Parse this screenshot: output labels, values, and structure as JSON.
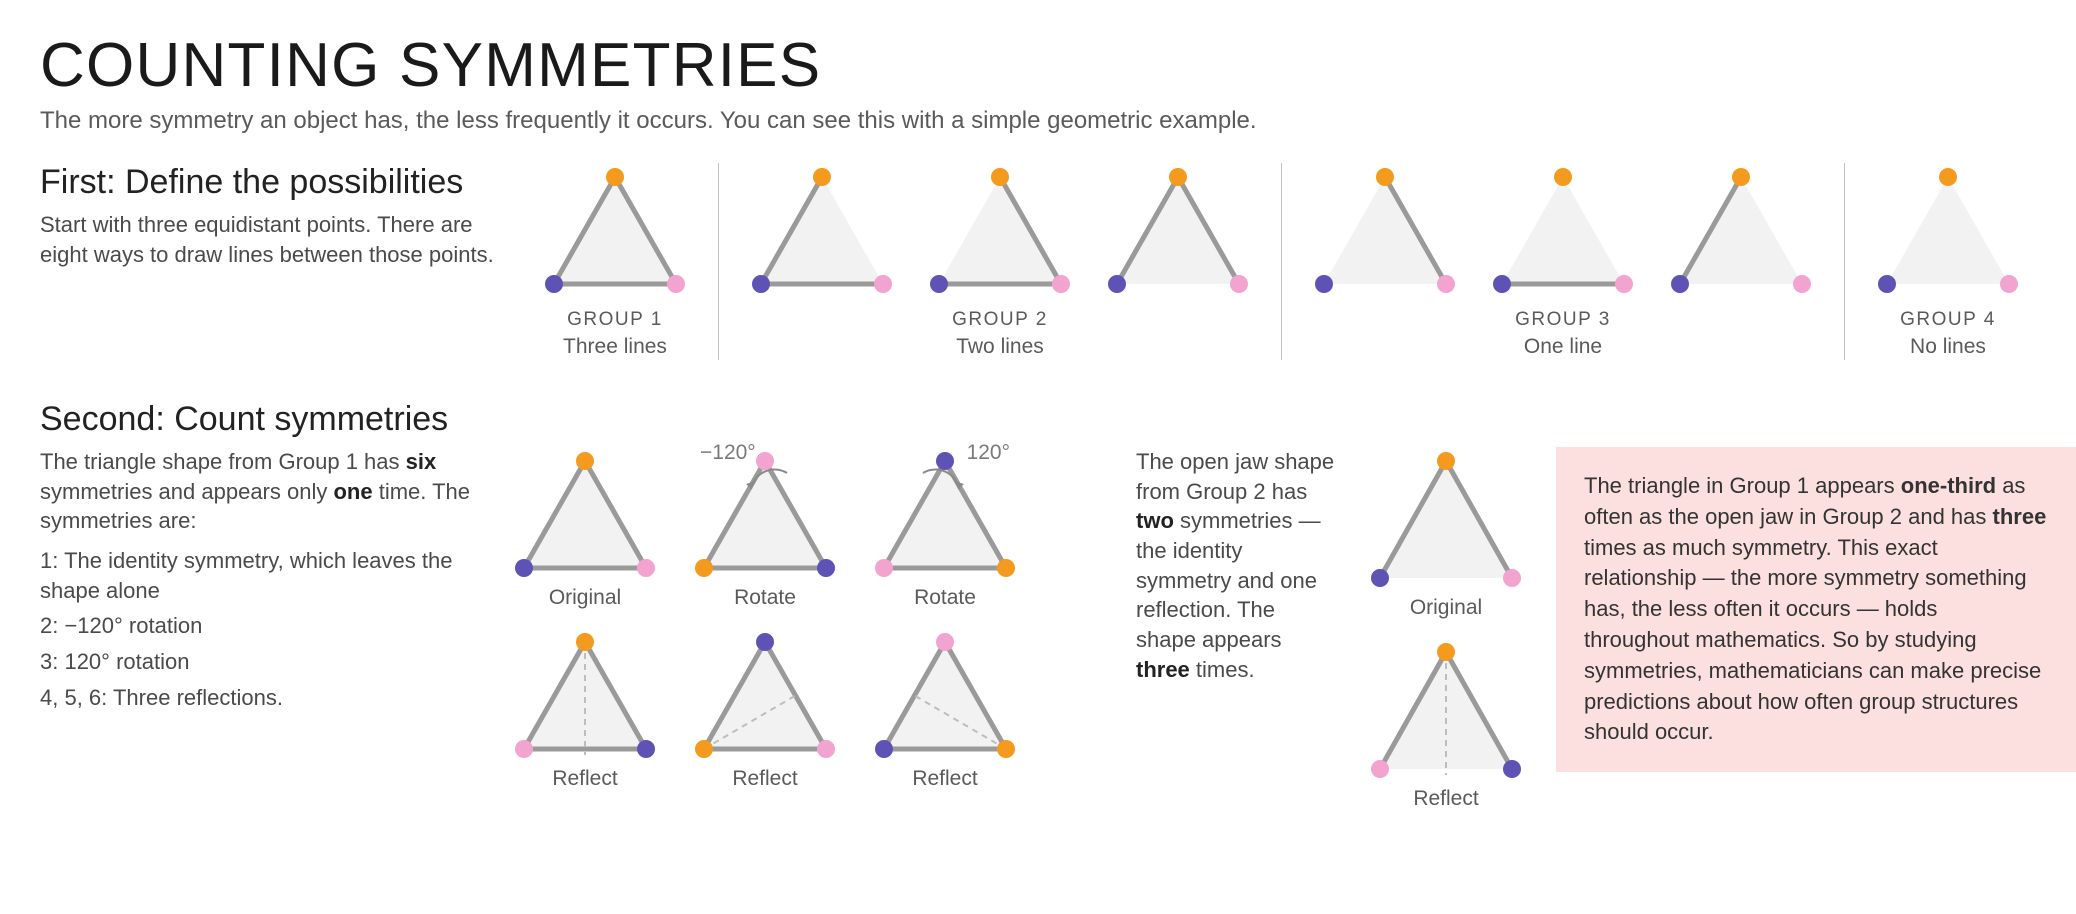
{
  "title": "COUNTING SYMMETRIES",
  "subtitle": "The more symmetry an object has, the less frequently it occurs. You can see this with a simple geometric example.",
  "colors": {
    "top": "#f39a1f",
    "left": "#5e52b5",
    "right": "#f2a3cf",
    "edge": "#9a9a9a",
    "fill": "#f2f2f2",
    "divider": "#bfbfbf",
    "dash": "#bdbdbd",
    "text_muted": "#5a5a5a",
    "callout_bg": "#fce0e0"
  },
  "triangle_geom": {
    "width": 150,
    "height": 140,
    "dot_r": 9,
    "edge_w": 5
  },
  "section1": {
    "heading": "First: Define the possibilities",
    "text": "Start with three equidistant points. There are eight ways to draw lines between those points.",
    "groups": [
      {
        "name": "GROUP 1",
        "detail": "Three lines",
        "triangles": [
          {
            "colors": [
              "top",
              "left",
              "right"
            ],
            "edges": [
              "tl",
              "tr",
              "lr"
            ]
          }
        ]
      },
      {
        "name": "GROUP 2",
        "detail": "Two lines",
        "triangles": [
          {
            "colors": [
              "top",
              "left",
              "right"
            ],
            "edges": [
              "tl",
              "lr"
            ]
          },
          {
            "colors": [
              "top",
              "left",
              "right"
            ],
            "edges": [
              "tr",
              "lr"
            ]
          },
          {
            "colors": [
              "top",
              "left",
              "right"
            ],
            "edges": [
              "tl",
              "tr"
            ]
          }
        ]
      },
      {
        "name": "GROUP 3",
        "detail": "One line",
        "triangles": [
          {
            "colors": [
              "top",
              "left",
              "right"
            ],
            "edges": [
              "tr"
            ]
          },
          {
            "colors": [
              "top",
              "left",
              "right"
            ],
            "edges": [
              "lr"
            ]
          },
          {
            "colors": [
              "top",
              "left",
              "right"
            ],
            "edges": [
              "tl"
            ]
          }
        ]
      },
      {
        "name": "GROUP 4",
        "detail": "No lines",
        "triangles": [
          {
            "colors": [
              "top",
              "left",
              "right"
            ],
            "edges": []
          }
        ]
      }
    ]
  },
  "section2": {
    "heading": "Second: Count symmetries",
    "left_html": "The triangle shape from Group 1 has <b>six</b> symmetries and appears only <b>one</b> time. The symmetries are:",
    "list": [
      "1: The identity symmetry, which leaves the shape alone",
      "2: −120° rotation",
      "3: 120° rotation",
      "4, 5, 6: Three reflections."
    ],
    "six_triangles": [
      {
        "cap": "Original",
        "colors": [
          "top",
          "left",
          "right"
        ],
        "edges": [
          "tl",
          "tr",
          "lr"
        ],
        "rot_label": "",
        "axis": null
      },
      {
        "cap": "Rotate",
        "colors": [
          "right",
          "top",
          "left"
        ],
        "edges": [
          "tl",
          "tr",
          "lr"
        ],
        "rot_label": "−120°",
        "axis": null,
        "arrow": "ccw"
      },
      {
        "cap": "Rotate",
        "colors": [
          "left",
          "right",
          "top"
        ],
        "edges": [
          "tl",
          "tr",
          "lr"
        ],
        "rot_label": "120°",
        "axis": null,
        "arrow": "cw"
      },
      {
        "cap": "Reflect",
        "colors": [
          "top",
          "right",
          "left"
        ],
        "edges": [
          "tl",
          "tr",
          "lr"
        ],
        "rot_label": "",
        "axis": "v"
      },
      {
        "cap": "Reflect",
        "colors": [
          "left",
          "top",
          "right"
        ],
        "edges": [
          "tl",
          "tr",
          "lr"
        ],
        "rot_label": "",
        "axis": "d1"
      },
      {
        "cap": "Reflect",
        "colors": [
          "right",
          "left",
          "top"
        ],
        "edges": [
          "tl",
          "tr",
          "lr"
        ],
        "rot_label": "",
        "axis": "d2"
      }
    ],
    "mid_html": "The open jaw shape from Group 2 has <b>two</b> symmetries — the identity symmetry and one reflection. The shape appears <b>three</b> times.",
    "jaw_triangles": [
      {
        "cap": "Original",
        "colors": [
          "top",
          "left",
          "right"
        ],
        "edges": [
          "tl",
          "tr"
        ],
        "axis": null
      },
      {
        "cap": "Reflect",
        "colors": [
          "top",
          "right",
          "left"
        ],
        "edges": [
          "tl",
          "tr"
        ],
        "axis": "v"
      }
    ],
    "callout_html": "The triangle in Group 1 appears <b>one-third</b> as often as the open jaw in Group 2 and has <b>three</b> times as much symmetry. This exact relationship — the more symmetry something has, the less often it occurs — holds throughout mathematics. So by studying symmetries, mathematicians can make precise predictions about how often group structures should occur."
  }
}
